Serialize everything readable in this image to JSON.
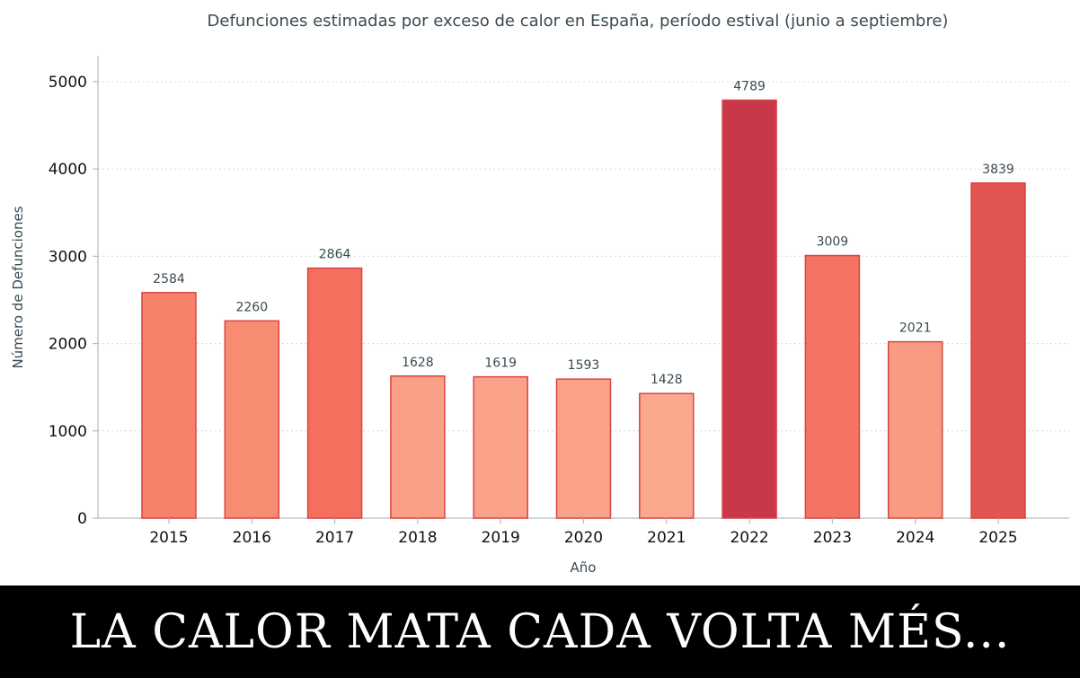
{
  "chart_data": {
    "type": "bar",
    "title": "Defunciones estimadas por exceso de calor en España, período estival (junio a septiembre)",
    "xlabel": "Año",
    "ylabel": "Número de Defunciones",
    "categories": [
      "2015",
      "2016",
      "2017",
      "2018",
      "2019",
      "2020",
      "2021",
      "2022",
      "2023",
      "2024",
      "2025"
    ],
    "values": [
      2584,
      2260,
      2864,
      1628,
      1619,
      1593,
      1428,
      4789,
      3009,
      2021,
      3839
    ],
    "value_labels": [
      "2584",
      "2260",
      "2864",
      "1628",
      "1619",
      "1593",
      "1428",
      "4789",
      "3009",
      "2021",
      "3839"
    ],
    "ylim": [
      0,
      5300
    ],
    "yticks": [
      0,
      1000,
      2000,
      3000,
      4000,
      5000
    ],
    "ytick_labels": [
      "0",
      "1000",
      "2000",
      "3000",
      "4000",
      "5000"
    ],
    "grid": "horizontal-dotted",
    "colors": [
      "#f6826c",
      "#f88c72",
      "#f56f5e",
      "#f9a087",
      "#f9a289",
      "#f9a289",
      "#f9a78d",
      "#c8384a",
      "#f37463",
      "#f89b82",
      "#e25550"
    ],
    "edge_color": "#d94444"
  },
  "banner": {
    "text": "LA CALOR MATA CADA VOLTA MÉS..."
  }
}
